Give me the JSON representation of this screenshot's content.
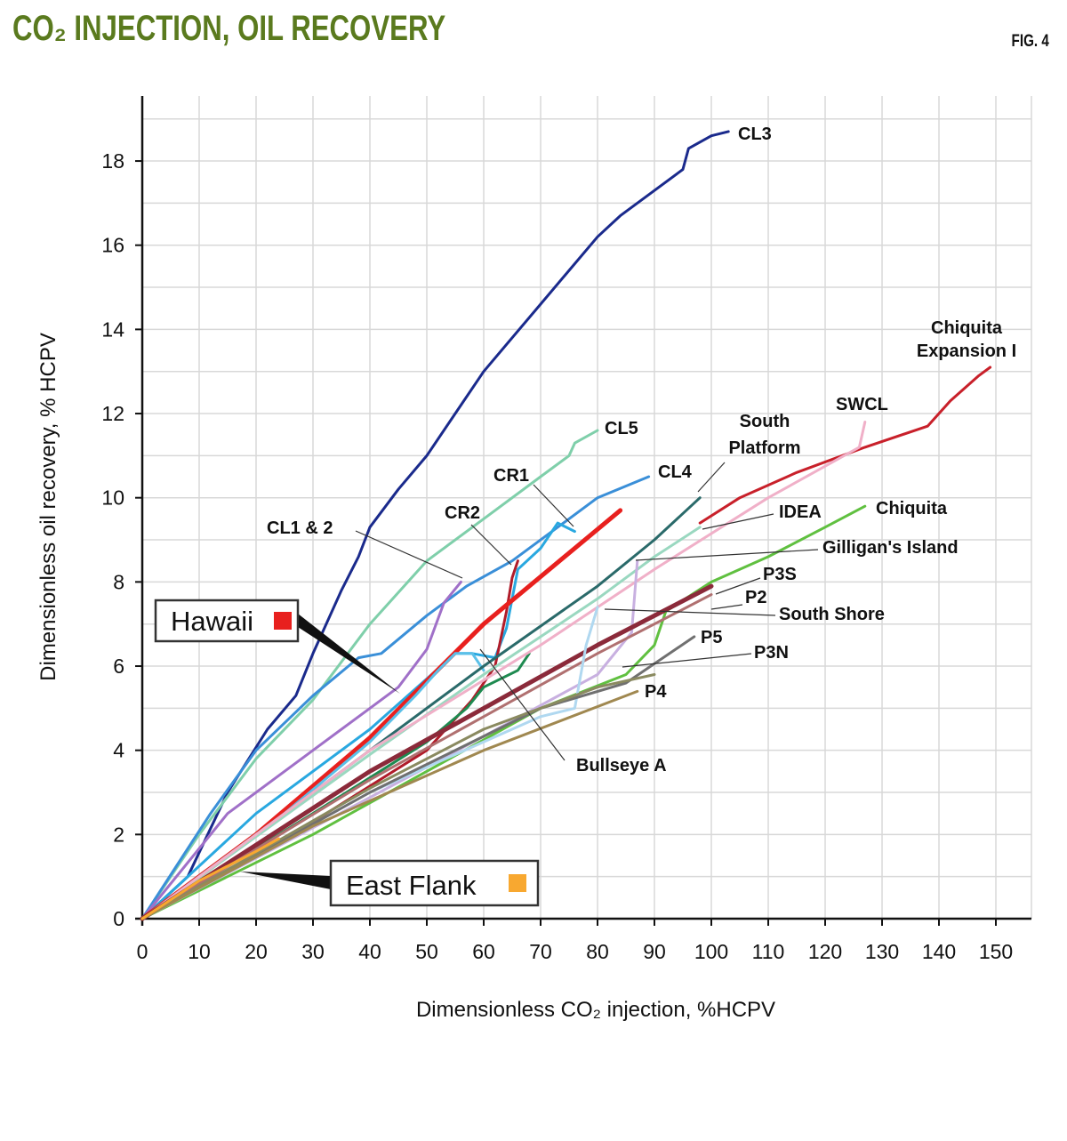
{
  "title": "CO₂ INJECTION, OIL RECOVERY",
  "figure_label": "FIG. 4",
  "chart_data": {
    "type": "line",
    "title": "CO₂ INJECTION, OIL RECOVERY",
    "xlabel": "Dimensionless CO₂ injection, %HCPV",
    "ylabel": "Dimensionless oil recovery, % HCPV",
    "xlim": [
      0,
      155
    ],
    "ylim": [
      0,
      19.5
    ],
    "xticks": [
      0,
      10,
      20,
      30,
      40,
      50,
      60,
      70,
      80,
      90,
      100,
      110,
      120,
      130,
      140,
      150
    ],
    "yticks": [
      0,
      2,
      4,
      6,
      8,
      10,
      12,
      14,
      16,
      18
    ],
    "grid": true,
    "series": [
      {
        "name": "CL3",
        "color": "#1a2a8c",
        "points": [
          [
            0,
            0
          ],
          [
            8,
            1
          ],
          [
            15,
            3
          ],
          [
            22,
            4.5
          ],
          [
            27,
            5.3
          ],
          [
            30,
            6.3
          ],
          [
            35,
            7.8
          ],
          [
            38,
            8.6
          ],
          [
            40,
            9.3
          ],
          [
            45,
            10.2
          ],
          [
            50,
            11
          ],
          [
            55,
            12
          ],
          [
            60,
            13
          ],
          [
            65,
            13.8
          ],
          [
            70,
            14.6
          ],
          [
            75,
            15.4
          ],
          [
            80,
            16.2
          ],
          [
            84,
            16.7
          ],
          [
            90,
            17.3
          ],
          [
            95,
            17.8
          ],
          [
            96,
            18.3
          ],
          [
            100,
            18.6
          ],
          [
            103,
            18.7
          ]
        ]
      },
      {
        "name": "CL5",
        "color": "#7fcfaa",
        "points": [
          [
            0,
            0
          ],
          [
            10,
            2
          ],
          [
            20,
            3.8
          ],
          [
            30,
            5.2
          ],
          [
            40,
            7
          ],
          [
            50,
            8.5
          ],
          [
            60,
            9.5
          ],
          [
            70,
            10.5
          ],
          [
            75,
            11
          ],
          [
            76,
            11.3
          ],
          [
            80,
            11.6
          ]
        ]
      },
      {
        "name": "CL4",
        "color": "#3a8fd8",
        "points": [
          [
            0,
            0
          ],
          [
            12,
            2.5
          ],
          [
            20,
            4
          ],
          [
            30,
            5.3
          ],
          [
            38,
            6.2
          ],
          [
            42,
            6.3
          ],
          [
            50,
            7.2
          ],
          [
            57,
            7.9
          ],
          [
            65,
            8.5
          ],
          [
            72,
            9.2
          ],
          [
            80,
            10
          ],
          [
            89,
            10.5
          ]
        ]
      },
      {
        "name": "CR1",
        "color": "#29a8e0",
        "points": [
          [
            0,
            0
          ],
          [
            20,
            2.5
          ],
          [
            40,
            4.5
          ],
          [
            50,
            5.7
          ],
          [
            55,
            6.3
          ],
          [
            58,
            6.3
          ],
          [
            62,
            6.2
          ],
          [
            64,
            6.9
          ],
          [
            66,
            8.3
          ],
          [
            70,
            8.8
          ],
          [
            73,
            9.4
          ],
          [
            76,
            9.2
          ]
        ]
      },
      {
        "name": "CR2",
        "color": "#b01c2a",
        "points": [
          [
            0,
            0
          ],
          [
            30,
            2.3
          ],
          [
            50,
            4
          ],
          [
            58,
            5.2
          ],
          [
            62,
            6
          ],
          [
            64,
            7.3
          ],
          [
            65,
            8.1
          ],
          [
            66,
            8.5
          ]
        ]
      },
      {
        "name": "CL1 & 2",
        "color": "#a070c8",
        "points": [
          [
            0,
            0
          ],
          [
            15,
            2.5
          ],
          [
            30,
            4
          ],
          [
            40,
            5
          ],
          [
            45,
            5.5
          ],
          [
            50,
            6.4
          ],
          [
            53,
            7.5
          ],
          [
            56,
            8
          ]
        ]
      },
      {
        "name": "Hawaii",
        "color": "#e8201e",
        "points": [
          [
            0,
            0
          ],
          [
            20,
            2
          ],
          [
            40,
            4.3
          ],
          [
            60,
            7
          ],
          [
            84,
            9.7
          ]
        ]
      },
      {
        "name": "Bullseye A",
        "color": "#5bc0e8",
        "points": [
          [
            0,
            0
          ],
          [
            25,
            2.5
          ],
          [
            40,
            4.2
          ],
          [
            48,
            5.3
          ],
          [
            52,
            5.9
          ],
          [
            55,
            6.3
          ],
          [
            58,
            6.3
          ],
          [
            60,
            5.9
          ]
        ]
      },
      {
        "name": "",
        "color": "#1e8a50",
        "points": [
          [
            0,
            0
          ],
          [
            30,
            2.5
          ],
          [
            50,
            4.2
          ],
          [
            57,
            5
          ],
          [
            60,
            5.5
          ],
          [
            66,
            5.9
          ],
          [
            68,
            6.3
          ]
        ]
      },
      {
        "name": "South Platform",
        "color": "#2a6a6a",
        "points": [
          [
            0,
            0
          ],
          [
            40,
            4
          ],
          [
            60,
            6
          ],
          [
            80,
            7.9
          ],
          [
            90,
            9
          ],
          [
            98,
            10
          ]
        ]
      },
      {
        "name": "IDEA",
        "color": "#9ad8c0",
        "points": [
          [
            0,
            0
          ],
          [
            40,
            3.9
          ],
          [
            60,
            5.8
          ],
          [
            80,
            7.6
          ],
          [
            90,
            8.6
          ],
          [
            98,
            9.3
          ]
        ]
      },
      {
        "name": "Chiquita Expansion I",
        "color": "#c8202a",
        "points": [
          [
            98,
            9.4
          ],
          [
            105,
            10
          ],
          [
            115,
            10.6
          ],
          [
            127,
            11.2
          ],
          [
            138,
            11.7
          ],
          [
            142,
            12.3
          ],
          [
            147,
            12.9
          ],
          [
            149,
            13.1
          ]
        ]
      },
      {
        "name": "SWCL",
        "color": "#f0b0c8",
        "points": [
          [
            0,
            0
          ],
          [
            40,
            4
          ],
          [
            70,
            6.5
          ],
          [
            90,
            8.3
          ],
          [
            110,
            10
          ],
          [
            126,
            11.2
          ],
          [
            127,
            11.8
          ]
        ]
      },
      {
        "name": "Chiquita",
        "color": "#60c040",
        "points": [
          [
            0,
            0
          ],
          [
            30,
            2
          ],
          [
            50,
            3.5
          ],
          [
            70,
            5
          ],
          [
            85,
            5.8
          ],
          [
            90,
            6.5
          ],
          [
            92,
            7.3
          ],
          [
            100,
            8
          ],
          [
            110,
            8.6
          ],
          [
            120,
            9.3
          ],
          [
            127,
            9.8
          ]
        ]
      },
      {
        "name": "Gilligan's Island",
        "color": "#c8b0e0",
        "points": [
          [
            0,
            0
          ],
          [
            50,
            3.6
          ],
          [
            80,
            5.8
          ],
          [
            86,
            6.8
          ],
          [
            87,
            8.5
          ]
        ]
      },
      {
        "name": "P3S",
        "color": "#8b2a3a",
        "points": [
          [
            0,
            0
          ],
          [
            40,
            3.5
          ],
          [
            60,
            5
          ],
          [
            80,
            6.5
          ],
          [
            100,
            7.9
          ]
        ]
      },
      {
        "name": "P2",
        "color": "#b07070",
        "points": [
          [
            0,
            0
          ],
          [
            40,
            3.3
          ],
          [
            60,
            4.8
          ],
          [
            80,
            6.3
          ],
          [
            100,
            7.7
          ]
        ]
      },
      {
        "name": "South Shore",
        "color": "#b0d8f0",
        "points": [
          [
            0,
            0
          ],
          [
            40,
            3
          ],
          [
            70,
            4.8
          ],
          [
            76,
            5
          ],
          [
            78,
            6.5
          ],
          [
            80,
            7.4
          ]
        ]
      },
      {
        "name": "P5",
        "color": "#707070",
        "points": [
          [
            0,
            0
          ],
          [
            40,
            3
          ],
          [
            70,
            5
          ],
          [
            85,
            5.6
          ],
          [
            97,
            6.7
          ]
        ]
      },
      {
        "name": "P3N",
        "color": "#8a8a60",
        "points": [
          [
            0,
            0
          ],
          [
            40,
            3.1
          ],
          [
            60,
            4.5
          ],
          [
            80,
            5.5
          ],
          [
            90,
            5.8
          ]
        ]
      },
      {
        "name": "P4",
        "color": "#a08850",
        "points": [
          [
            0,
            0
          ],
          [
            30,
            2.2
          ],
          [
            60,
            4
          ],
          [
            87,
            5.4
          ]
        ]
      },
      {
        "name": "East Flank",
        "color": "#f8a830",
        "points": [
          [
            0,
            0
          ],
          [
            10,
            0.9
          ],
          [
            20,
            1.6
          ],
          [
            24,
            1.9
          ]
        ]
      }
    ],
    "callouts": [
      {
        "label": "Hawaii",
        "color": "#e8201e"
      },
      {
        "label": "East Flank",
        "color": "#f8a830"
      }
    ]
  }
}
